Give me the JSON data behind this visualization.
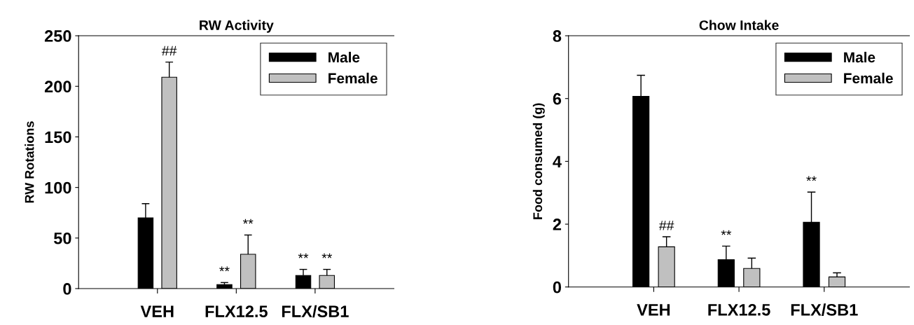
{
  "chart_data": [
    {
      "type": "bar",
      "title": "RW Activity",
      "ylabel": "RW Rotations",
      "categories": [
        "VEH",
        "FLX12.5",
        "FLX/SB1"
      ],
      "series": [
        {
          "name": "Male",
          "color": "#000000",
          "values": [
            70,
            4,
            13
          ],
          "errors": [
            [
              70,
              84
            ],
            [
              4,
              6
            ],
            [
              13,
              19
            ]
          ],
          "value_labels": [
            null,
            "**",
            "**"
          ]
        },
        {
          "name": "Female",
          "color": "#c0c0c0",
          "values": [
            209,
            34,
            13
          ],
          "errors": [
            [
              209,
              224
            ],
            [
              34,
              53
            ],
            [
              13,
              19
            ]
          ],
          "value_labels": [
            "##",
            "**",
            "**"
          ]
        }
      ],
      "ylim": [
        0,
        250
      ],
      "yticks": [
        0,
        50,
        100,
        150,
        200,
        250
      ],
      "legend": "top right",
      "grid": false
    },
    {
      "type": "bar",
      "title": "Chow Intake",
      "ylabel": "Food consumed (g)",
      "categories": [
        "VEH",
        "FLX12.5",
        "FLX/SB1"
      ],
      "series": [
        {
          "name": "Male",
          "color": "#000000",
          "values": [
            6.07,
            0.87,
            2.06
          ],
          "errors": [
            [
              6.07,
              6.74
            ],
            [
              0.87,
              1.3
            ],
            [
              2.06,
              3.02
            ]
          ],
          "value_labels": [
            null,
            "**",
            "**"
          ]
        },
        {
          "name": "Female",
          "color": "#c0c0c0",
          "values": [
            1.28,
            0.59,
            0.32
          ],
          "errors": [
            [
              1.28,
              1.6
            ],
            [
              0.59,
              0.92
            ],
            [
              0.32,
              0.45
            ]
          ],
          "value_labels": [
            "##",
            null,
            null
          ]
        }
      ],
      "ylim": [
        0,
        8
      ],
      "yticks": [
        0,
        2,
        4,
        6,
        8
      ],
      "legend": "top right",
      "grid": false
    }
  ]
}
